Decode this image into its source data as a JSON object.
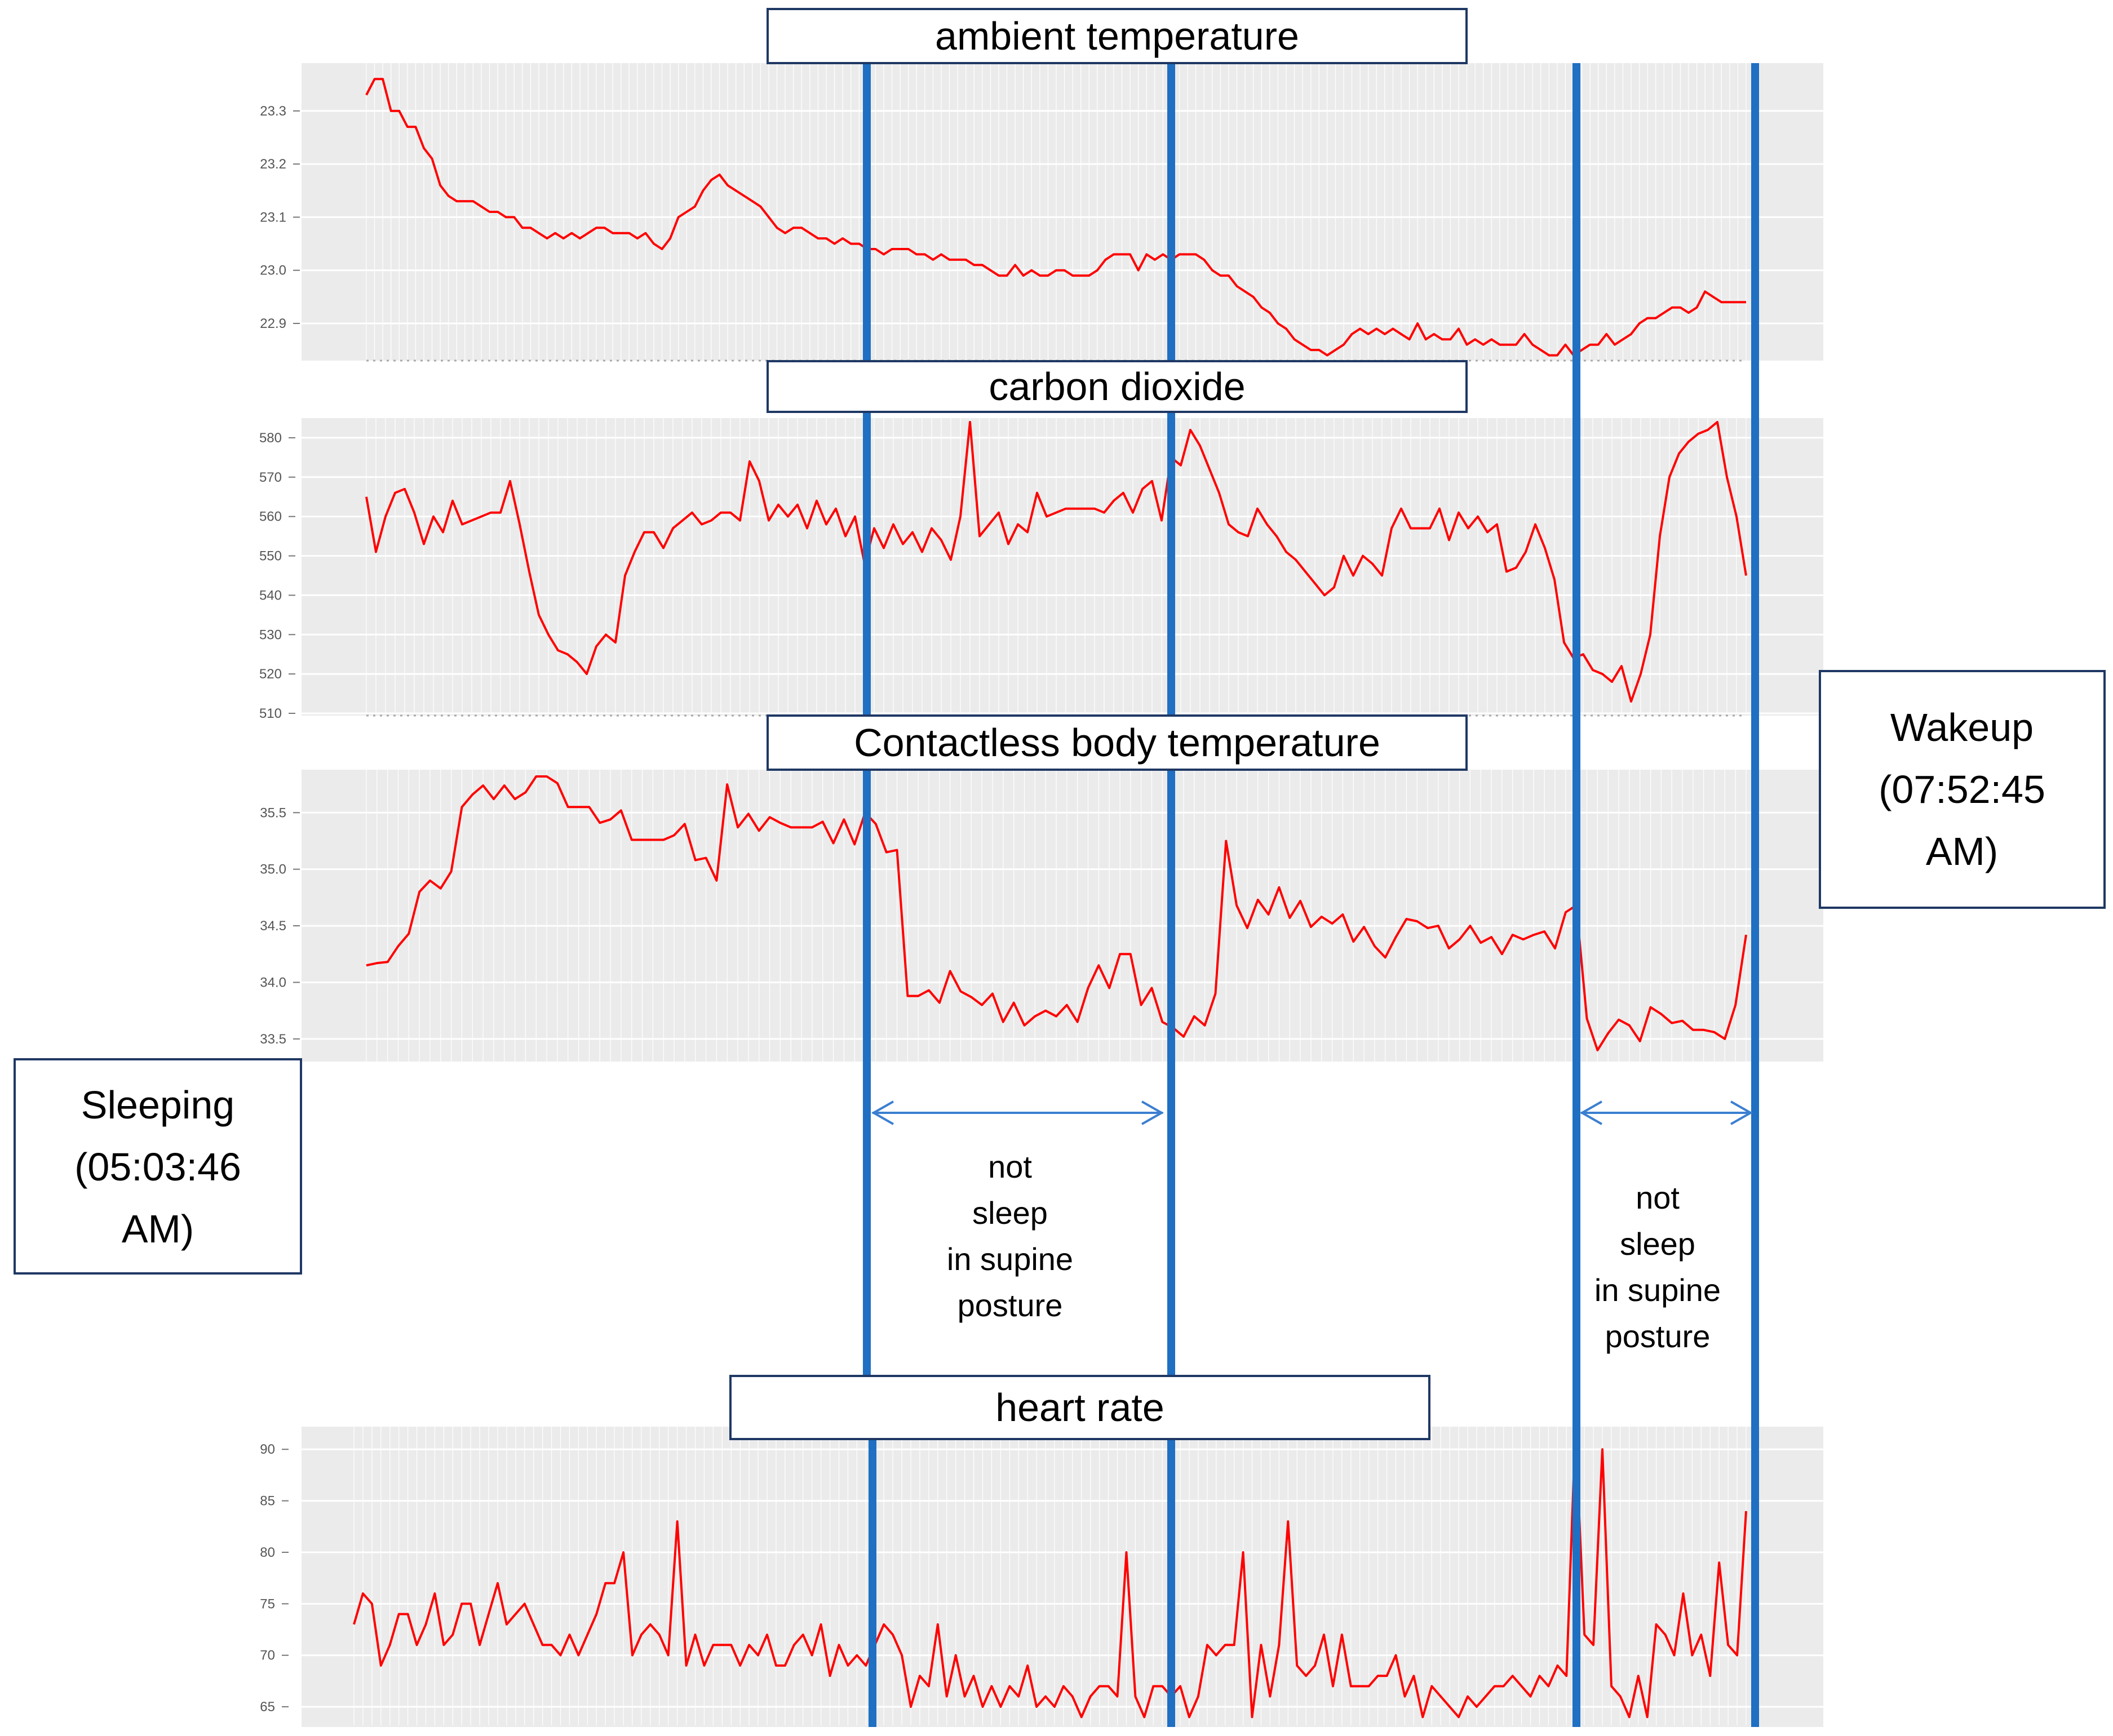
{
  "chart_data": [
    {
      "type": "line",
      "title": "ambient temperature",
      "ylim": [
        22.83,
        23.39
      ],
      "yticks": [
        22.9,
        23.0,
        23.1,
        23.2,
        23.3
      ],
      "tick_labels": [
        "22.9",
        "23.0",
        "23.1",
        "23.2",
        "23.3"
      ],
      "series": [
        {
          "name": "ambient temperature",
          "color": "#ff0000",
          "values": [
            23.33,
            23.36,
            23.36,
            23.3,
            23.3,
            23.27,
            23.27,
            23.23,
            23.21,
            23.16,
            23.14,
            23.13,
            23.13,
            23.13,
            23.12,
            23.11,
            23.11,
            23.1,
            23.1,
            23.08,
            23.08,
            23.07,
            23.06,
            23.07,
            23.06,
            23.07,
            23.06,
            23.07,
            23.08,
            23.08,
            23.07,
            23.07,
            23.07,
            23.06,
            23.07,
            23.05,
            23.04,
            23.06,
            23.1,
            23.11,
            23.12,
            23.15,
            23.17,
            23.18,
            23.16,
            23.15,
            23.14,
            23.13,
            23.12,
            23.1,
            23.08,
            23.07,
            23.08,
            23.08,
            23.07,
            23.06,
            23.06,
            23.05,
            23.06,
            23.05,
            23.05,
            23.04,
            23.04,
            23.03,
            23.04,
            23.04,
            23.04,
            23.03,
            23.03,
            23.02,
            23.03,
            23.02,
            23.02,
            23.02,
            23.01,
            23.01,
            23.0,
            22.99,
            22.99,
            23.01,
            22.99,
            23.0,
            22.99,
            22.99,
            23.0,
            23.0,
            22.99,
            22.99,
            22.99,
            23.0,
            23.02,
            23.03,
            23.03,
            23.03,
            23.0,
            23.03,
            23.02,
            23.03,
            23.02,
            23.03,
            23.03,
            23.03,
            23.02,
            23.0,
            22.99,
            22.99,
            22.97,
            22.96,
            22.95,
            22.93,
            22.92,
            22.9,
            22.89,
            22.87,
            22.86,
            22.85,
            22.85,
            22.84,
            22.85,
            22.86,
            22.88,
            22.89,
            22.88,
            22.89,
            22.88,
            22.89,
            22.88,
            22.87,
            22.9,
            22.87,
            22.88,
            22.87,
            22.87,
            22.89,
            22.86,
            22.87,
            22.86,
            22.87,
            22.86,
            22.86,
            22.86,
            22.88,
            22.86,
            22.85,
            22.84,
            22.84,
            22.86,
            22.84,
            22.85,
            22.86,
            22.86,
            22.88,
            22.86,
            22.87,
            22.88,
            22.9,
            22.91,
            22.91,
            22.92,
            22.93,
            22.93,
            22.92,
            22.93,
            22.96,
            22.95,
            22.94,
            22.94,
            22.94,
            22.94
          ]
        }
      ]
    },
    {
      "type": "line",
      "title": "carbon dioxide",
      "ylim": [
        510,
        585
      ],
      "yticks": [
        510,
        520,
        530,
        540,
        550,
        560,
        570,
        580
      ],
      "tick_labels": [
        "510",
        "520",
        "530",
        "540",
        "550",
        "560",
        "570",
        "580"
      ],
      "series": [
        {
          "name": "carbon dioxide",
          "color": "#ff0000",
          "values": [
            565,
            551,
            560,
            566,
            567,
            561,
            553,
            560,
            556,
            564,
            558,
            559,
            560,
            561,
            561,
            569,
            558,
            546,
            535,
            530,
            526,
            525,
            523,
            520,
            527,
            530,
            528,
            545,
            551,
            556,
            556,
            552,
            557,
            559,
            561,
            558,
            559,
            561,
            561,
            559,
            574,
            569,
            559,
            563,
            560,
            563,
            557,
            564,
            558,
            562,
            555,
            560,
            548,
            557,
            552,
            558,
            553,
            556,
            551,
            557,
            554,
            549,
            560,
            584,
            555,
            558,
            561,
            553,
            558,
            556,
            566,
            560,
            561,
            562,
            562,
            562,
            562,
            561,
            564,
            566,
            561,
            567,
            569,
            559,
            575,
            573,
            582,
            578,
            572,
            566,
            558,
            556,
            555,
            562,
            558,
            555,
            551,
            549,
            546,
            543,
            540,
            542,
            550,
            545,
            550,
            548,
            545,
            557,
            562,
            557,
            557,
            557,
            562,
            554,
            561,
            557,
            560,
            556,
            558,
            546,
            547,
            551,
            558,
            552,
            544,
            528,
            524,
            525,
            521,
            520,
            518,
            522,
            513,
            520,
            530,
            555,
            570,
            576,
            579,
            581,
            582,
            584,
            570,
            560,
            545
          ]
        }
      ]
    },
    {
      "type": "line",
      "title": "Contactless body temperature",
      "ylim": [
        33.3,
        35.88
      ],
      "yticks": [
        33.5,
        34.0,
        34.5,
        35.0,
        35.5
      ],
      "tick_labels": [
        "33.5",
        "34.0",
        "34.5",
        "35.0",
        "35.5"
      ],
      "series": [
        {
          "name": "Contactless body temperature",
          "color": "#ff0000",
          "values": [
            34.15,
            34.17,
            34.18,
            34.32,
            34.43,
            34.8,
            34.9,
            34.83,
            34.98,
            35.55,
            35.66,
            35.74,
            35.62,
            35.74,
            35.62,
            35.68,
            35.82,
            35.82,
            35.76,
            35.55,
            35.55,
            35.55,
            35.41,
            35.44,
            35.52,
            35.26,
            35.26,
            35.26,
            35.26,
            35.3,
            35.4,
            35.08,
            35.1,
            34.9,
            35.75,
            35.37,
            35.49,
            35.34,
            35.46,
            35.41,
            35.37,
            35.37,
            35.37,
            35.42,
            35.23,
            35.44,
            35.22,
            35.5,
            35.4,
            35.15,
            35.17,
            33.88,
            33.88,
            33.93,
            33.82,
            34.1,
            33.92,
            33.87,
            33.8,
            33.9,
            33.65,
            33.82,
            33.62,
            33.7,
            33.75,
            33.7,
            33.8,
            33.65,
            33.95,
            34.15,
            33.95,
            34.25,
            34.25,
            33.8,
            33.95,
            33.65,
            33.6,
            33.52,
            33.7,
            33.62,
            33.9,
            35.25,
            34.68,
            34.48,
            34.73,
            34.6,
            34.84,
            34.57,
            34.72,
            34.49,
            34.58,
            34.52,
            34.6,
            34.36,
            34.49,
            34.32,
            34.22,
            34.4,
            34.56,
            34.54,
            34.48,
            34.5,
            34.3,
            34.38,
            34.5,
            34.35,
            34.4,
            34.25,
            34.42,
            34.38,
            34.42,
            34.45,
            34.3,
            34.62,
            34.68,
            33.68,
            33.4,
            33.55,
            33.67,
            33.62,
            33.48,
            33.78,
            33.72,
            33.64,
            33.66,
            33.58,
            33.58,
            33.56,
            33.5,
            33.8,
            34.42
          ]
        }
      ]
    },
    {
      "type": "line",
      "title": "heart rate",
      "ylim": [
        63.2,
        92.2
      ],
      "yticks": [
        65,
        70,
        75,
        80,
        85,
        90
      ],
      "tick_labels": [
        "65",
        "70",
        "75",
        "80",
        "85",
        "90"
      ],
      "series": [
        {
          "name": "heart rate",
          "color": "#ff0000",
          "values": [
            73,
            76,
            75,
            69,
            71,
            74,
            74,
            71,
            73,
            76,
            71,
            72,
            75,
            75,
            71,
            74,
            77,
            73,
            74,
            75,
            73,
            71,
            71,
            70,
            72,
            70,
            72,
            74,
            77,
            77,
            80,
            70,
            72,
            73,
            72,
            70,
            83,
            69,
            72,
            69,
            71,
            71,
            71,
            69,
            71,
            70,
            72,
            69,
            69,
            71,
            72,
            70,
            73,
            68,
            71,
            69,
            70,
            69,
            71,
            73,
            72,
            70,
            65,
            68,
            67,
            73,
            66,
            70,
            66,
            68,
            65,
            67,
            65,
            67,
            66,
            69,
            65,
            66,
            65,
            67,
            66,
            64,
            66,
            67,
            67,
            66,
            80,
            66,
            64,
            67,
            67,
            66,
            67,
            64,
            66,
            71,
            70,
            71,
            71,
            80,
            64,
            71,
            66,
            71,
            83,
            69,
            68,
            69,
            72,
            67,
            72,
            67,
            67,
            67,
            68,
            68,
            70,
            66,
            68,
            64,
            67,
            66,
            65,
            64,
            66,
            65,
            66,
            67,
            67,
            68,
            67,
            66,
            68,
            67,
            69,
            68,
            92,
            72,
            71,
            90,
            67,
            66,
            64,
            68,
            64,
            73,
            72,
            70,
            76,
            70,
            72,
            68,
            79,
            71,
            70,
            84
          ]
        }
      ]
    }
  ],
  "labels": {
    "sleeping": {
      "line1": "Sleeping",
      "line2": "(05:03:46",
      "line3": "AM)"
    },
    "wakeup": {
      "line1": "Wakeup",
      "line2": "(07:52:45",
      "line3": "AM)"
    },
    "not_sleep_1": {
      "line1": "not",
      "line2": "sleep",
      "line3": "in supine",
      "line4": "posture"
    },
    "not_sleep_2": {
      "line1": "not",
      "line2": "sleep",
      "line3": "in supine",
      "line4": "posture"
    }
  },
  "colors": {
    "series": "#ff0000",
    "markers": "#1f6fc3",
    "arrows": "#3b7fd0",
    "label_border": "#1f3864",
    "panel_bg": "#ebebeb"
  }
}
